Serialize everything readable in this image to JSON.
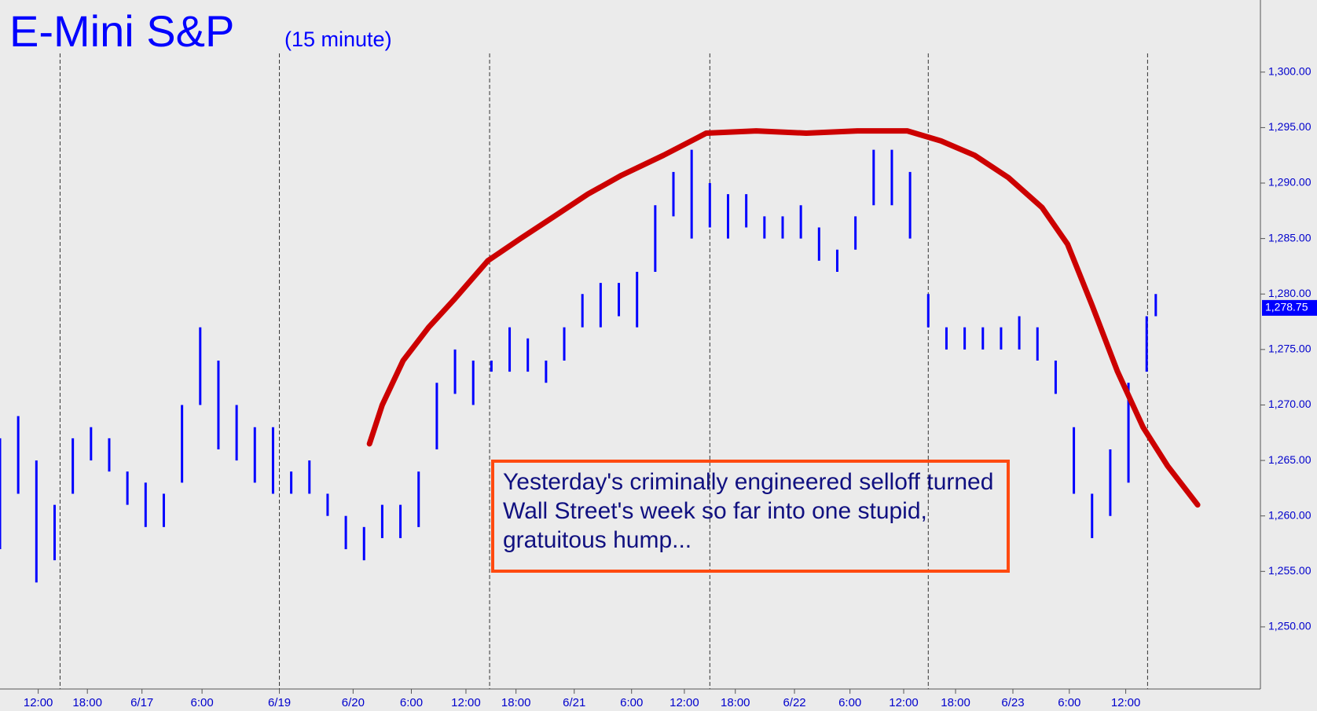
{
  "chart_data": {
    "type": "range_bar",
    "title": "E-Mini S&P",
    "subtitle": "(15 minute)",
    "annotation": "Yesterday's criminally engineered selloff turned Wall Street's week so far into one stupid, gratuitous hump...",
    "color": "#0000ff",
    "x": [
      0,
      2,
      4,
      6,
      8,
      10,
      12,
      14,
      16,
      18,
      20,
      22,
      24,
      26,
      28,
      30,
      32,
      34,
      36,
      38,
      40,
      42,
      44,
      46,
      48,
      50,
      52,
      54,
      56,
      58,
      60,
      62,
      64,
      66,
      68,
      70,
      72,
      74,
      76,
      78,
      80,
      82,
      84,
      86,
      88,
      90,
      92,
      94,
      96,
      98,
      100,
      102,
      104,
      106,
      108,
      110,
      112,
      114,
      116,
      118,
      120,
      122,
      124,
      126,
      127
    ],
    "high": [
      1267,
      1269,
      1265,
      1261,
      1267,
      1268,
      1267,
      1264,
      1263,
      1262,
      1270,
      1277,
      1274,
      1270,
      1268,
      1268,
      1264,
      1265,
      1262,
      1260,
      1259,
      1261,
      1261,
      1264,
      1272,
      1275,
      1274,
      1274,
      1277,
      1276,
      1274,
      1277,
      1280,
      1281,
      1281,
      1282,
      1288,
      1291,
      1293,
      1290,
      1289,
      1289,
      1287,
      1287,
      1288,
      1286,
      1284,
      1287,
      1293,
      1293,
      1291,
      1280,
      1277,
      1277,
      1277,
      1277,
      1278,
      1277,
      1274,
      1268,
      1262,
      1266,
      1272,
      1278,
      1280
    ],
    "low": [
      1257,
      1262,
      1254,
      1256,
      1262,
      1265,
      1264,
      1261,
      1259,
      1259,
      1263,
      1270,
      1266,
      1265,
      1263,
      1262,
      1262,
      1262,
      1260,
      1257,
      1256,
      1258,
      1258,
      1259,
      1266,
      1271,
      1270,
      1273,
      1273,
      1273,
      1272,
      1274,
      1277,
      1277,
      1278,
      1277,
      1282,
      1287,
      1285,
      1286,
      1285,
      1286,
      1285,
      1285,
      1285,
      1283,
      1282,
      1284,
      1288,
      1288,
      1285,
      1277,
      1275,
      1275,
      1275,
      1275,
      1275,
      1274,
      1271,
      1262,
      1258,
      1260,
      1263,
      1273,
      1278
    ],
    "trend": {
      "color": "#cc0000",
      "x": [
        40.6,
        42,
        44.3,
        47.1,
        49.9,
        53.6,
        57.2,
        60.9,
        64.6,
        68.3,
        72.9,
        77.6,
        83.1,
        88.6,
        94.2,
        99.7,
        103.4,
        107.1,
        110.8,
        114.5,
        117.3,
        120,
        122.8,
        125.6,
        128.3,
        131.6
      ],
      "y": [
        1266.5,
        1270,
        1274,
        1277,
        1279.5,
        1283,
        1285,
        1287,
        1289,
        1290.7,
        1292.5,
        1294.5,
        1294.7,
        1294.5,
        1294.7,
        1294.7,
        1293.8,
        1292.5,
        1290.5,
        1287.8,
        1284.5,
        1279,
        1273,
        1268,
        1264.5,
        1261
      ]
    },
    "session_breaks": [
      6.6,
      30.7,
      53.8,
      78,
      102,
      126.1
    ],
    "last_price": {
      "value": 1278.75,
      "label": "1,278.75"
    },
    "xlim": [
      0,
      138.5
    ],
    "ylim": [
      1244.4,
      1306.5
    ],
    "xticks": [
      {
        "value": 4.2,
        "label": "12:00"
      },
      {
        "value": 9.6,
        "label": "18:00"
      },
      {
        "value": 15.6,
        "label": "6/17"
      },
      {
        "value": 22.2,
        "label": "6:00"
      },
      {
        "value": 30.7,
        "label": "6/19"
      },
      {
        "value": 38.8,
        "label": "6/20"
      },
      {
        "value": 45.2,
        "label": "6:00"
      },
      {
        "value": 51.2,
        "label": "12:00"
      },
      {
        "value": 56.7,
        "label": "18:00"
      },
      {
        "value": 63.1,
        "label": "6/21"
      },
      {
        "value": 69.4,
        "label": "6:00"
      },
      {
        "value": 75.2,
        "label": "12:00"
      },
      {
        "value": 80.8,
        "label": "18:00"
      },
      {
        "value": 87.3,
        "label": "6/22"
      },
      {
        "value": 93.4,
        "label": "6:00"
      },
      {
        "value": 99.3,
        "label": "12:00"
      },
      {
        "value": 105,
        "label": "18:00"
      },
      {
        "value": 111.3,
        "label": "6/23"
      },
      {
        "value": 117.5,
        "label": "6:00"
      },
      {
        "value": 123.7,
        "label": "12:00"
      }
    ],
    "yticks": [
      {
        "value": 1250,
        "label": "1,250.00"
      },
      {
        "value": 1255,
        "label": "1,255.00"
      },
      {
        "value": 1260,
        "label": "1,260.00"
      },
      {
        "value": 1265,
        "label": "1,265.00"
      },
      {
        "value": 1270,
        "label": "1,270.00"
      },
      {
        "value": 1275,
        "label": "1,275.00"
      },
      {
        "value": 1280,
        "label": "1,280.00"
      },
      {
        "value": 1285,
        "label": "1,285.00"
      },
      {
        "value": 1290,
        "label": "1,290.00"
      },
      {
        "value": 1295,
        "label": "1,295.00"
      },
      {
        "value": 1300,
        "label": "1,300.00"
      }
    ]
  }
}
